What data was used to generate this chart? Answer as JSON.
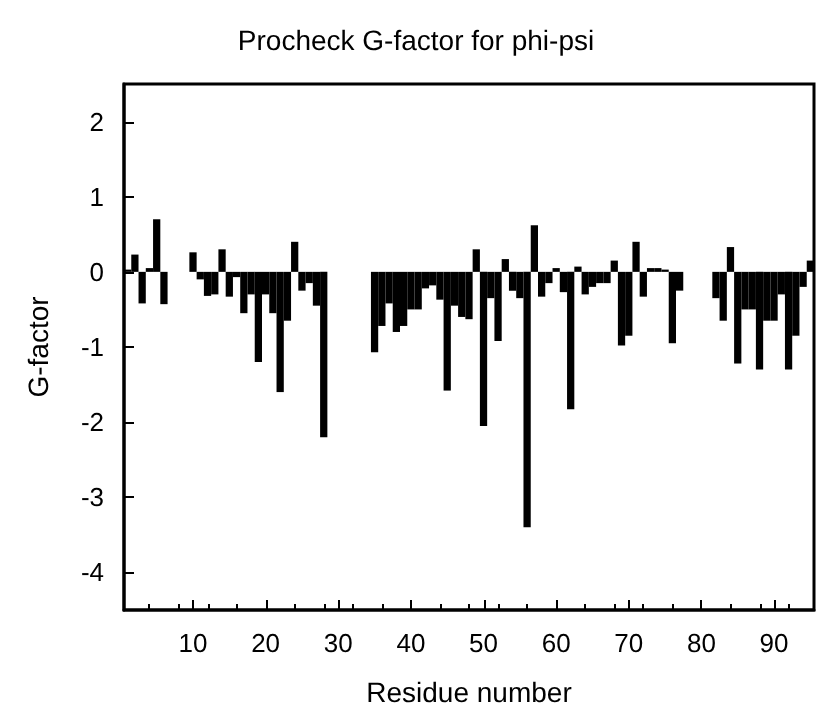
{
  "chart_data": {
    "type": "bar",
    "title": "Procheck G-factor for phi-psi",
    "xlabel": "Residue number",
    "ylabel": "G-factor",
    "x": [
      1,
      2,
      3,
      4,
      5,
      6,
      7,
      8,
      9,
      10,
      11,
      12,
      13,
      14,
      15,
      16,
      17,
      18,
      19,
      20,
      21,
      22,
      23,
      24,
      25,
      26,
      27,
      28,
      29,
      30,
      31,
      32,
      33,
      34,
      35,
      36,
      37,
      38,
      39,
      40,
      41,
      42,
      43,
      44,
      45,
      46,
      47,
      48,
      49,
      50,
      51,
      52,
      53,
      54,
      55,
      56,
      57,
      58,
      59,
      60,
      61,
      62,
      63,
      64,
      65,
      66,
      67,
      68,
      69,
      70,
      71,
      72,
      73,
      74,
      75,
      76,
      77,
      78,
      79,
      80,
      81,
      82,
      83,
      84,
      85,
      86,
      87,
      88,
      89,
      90,
      91,
      92,
      93,
      94,
      95
    ],
    "values": [
      0.03,
      0.23,
      -0.42,
      0.05,
      0.7,
      -0.43,
      null,
      null,
      null,
      0.26,
      -0.1,
      -0.32,
      -0.3,
      0.3,
      -0.33,
      -0.07,
      -0.55,
      -0.3,
      -1.2,
      -0.3,
      -0.55,
      -1.6,
      -0.65,
      0.4,
      -0.25,
      -0.15,
      -0.45,
      -2.2,
      null,
      null,
      null,
      null,
      null,
      null,
      -1.07,
      -0.72,
      -0.42,
      -0.8,
      -0.72,
      -0.5,
      -0.5,
      -0.22,
      -0.18,
      -0.37,
      -1.58,
      -0.45,
      -0.6,
      -0.63,
      0.3,
      -2.05,
      -0.35,
      -0.92,
      0.17,
      -0.25,
      -0.35,
      -3.4,
      0.62,
      -0.33,
      -0.15,
      0.05,
      -0.27,
      -1.83,
      0.07,
      -0.3,
      -0.2,
      -0.15,
      -0.15,
      0.15,
      -0.98,
      -0.85,
      0.4,
      -0.33,
      0.05,
      0.05,
      0.03,
      -0.95,
      -0.25,
      null,
      null,
      null,
      null,
      -0.35,
      -0.65,
      0.33,
      -1.22,
      -0.5,
      -0.5,
      -1.3,
      -0.65,
      -0.65,
      -0.3,
      -1.3,
      -0.85,
      -0.2,
      0.15
    ],
    "color": "#000000",
    "xlim": [
      0.5,
      95.5
    ],
    "xticks": [
      10,
      20,
      30,
      40,
      50,
      60,
      70,
      80,
      90
    ],
    "ylim": [
      -4.5,
      2.5
    ],
    "yticks": [
      -4,
      -3,
      -2,
      -1,
      0,
      1,
      2
    ],
    "grid": false
  }
}
